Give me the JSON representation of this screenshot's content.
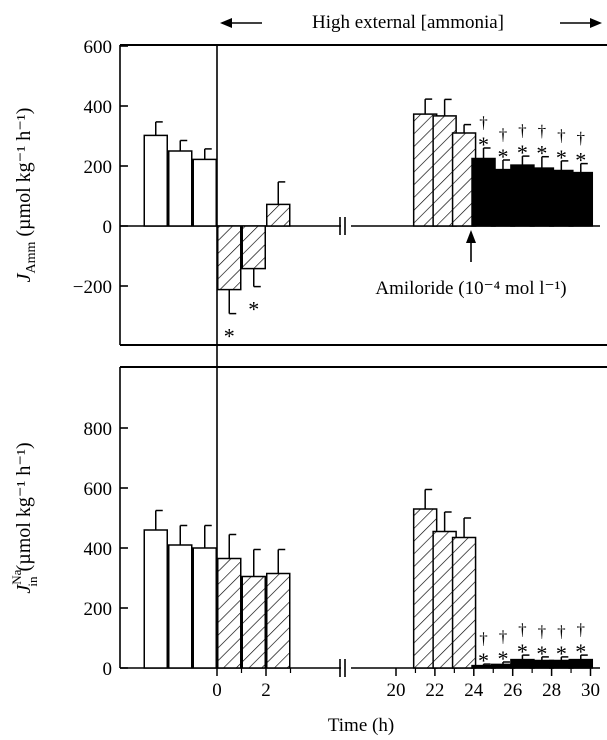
{
  "header": {
    "text": "High external [ammonia]"
  },
  "x_axis": {
    "label": "Time (h)",
    "tick_labels": [
      "0",
      "2",
      "20",
      "22",
      "24",
      "26",
      "28",
      "30"
    ]
  },
  "top_panel": {
    "ylabel_main": "J",
    "ylabel_sub": "Amm",
    "ylabel_unit": " (µmol kg⁻¹ h⁻¹)",
    "yticks": [
      "600",
      "400",
      "200",
      "0",
      "−200"
    ],
    "annotation": "Amiloride (10⁻⁴ mol l⁻¹)"
  },
  "bottom_panel": {
    "ylabel_main": "J",
    "ylabel_sup": "Na",
    "ylabel_sub": "in",
    "ylabel_unit": " (µmol kg⁻¹ h⁻¹)",
    "yticks": [
      "800",
      "600",
      "400",
      "200",
      "0"
    ]
  },
  "significance": {
    "star": "*",
    "dagger": "†"
  },
  "chart_data": [
    {
      "type": "bar",
      "panel": "top",
      "ylim": [
        -400,
        600
      ],
      "x_time_h": [
        -2.5,
        -1.5,
        -0.5,
        0.5,
        1.5,
        2.5,
        21.5,
        22.5,
        23.5,
        24.5,
        25.5,
        26.5,
        27.5,
        28.5,
        29.5
      ],
      "values": [
        302,
        250,
        222,
        -212,
        -142,
        72,
        373,
        367,
        310,
        225,
        188,
        203,
        193,
        185,
        178
      ],
      "errors": [
        45,
        35,
        35,
        80,
        60,
        75,
        50,
        55,
        28,
        35,
        32,
        30,
        38,
        32,
        30
      ],
      "fill": [
        "open",
        "open",
        "open",
        "hatched",
        "hatched",
        "hatched",
        "hatched",
        "hatched",
        "hatched",
        "solid",
        "solid",
        "solid",
        "solid",
        "solid",
        "solid"
      ],
      "star": [
        false,
        false,
        false,
        true,
        true,
        false,
        false,
        false,
        false,
        true,
        true,
        true,
        true,
        true,
        true
      ],
      "dagger": [
        false,
        false,
        false,
        false,
        false,
        false,
        false,
        false,
        false,
        true,
        true,
        true,
        true,
        true,
        true
      ]
    },
    {
      "type": "bar",
      "panel": "bottom",
      "ylim": [
        0,
        1000
      ],
      "x_time_h": [
        -2.5,
        -1.5,
        -0.5,
        0.5,
        1.5,
        2.5,
        21.5,
        22.5,
        23.5,
        24.5,
        25.5,
        26.5,
        27.5,
        28.5,
        29.5
      ],
      "values": [
        460,
        410,
        400,
        365,
        305,
        315,
        530,
        455,
        435,
        8,
        12,
        28,
        25,
        25,
        28
      ],
      "errors": [
        65,
        65,
        75,
        80,
        90,
        80,
        65,
        65,
        65,
        5,
        8,
        15,
        12,
        12,
        15
      ],
      "fill": [
        "open",
        "open",
        "open",
        "hatched",
        "hatched",
        "hatched",
        "hatched",
        "hatched",
        "hatched",
        "solid",
        "solid",
        "solid",
        "solid",
        "solid",
        "solid"
      ],
      "star": [
        false,
        false,
        false,
        false,
        false,
        false,
        false,
        false,
        false,
        true,
        true,
        true,
        true,
        true,
        true
      ],
      "dagger": [
        false,
        false,
        false,
        false,
        false,
        false,
        false,
        false,
        false,
        true,
        true,
        true,
        true,
        true,
        true
      ]
    }
  ]
}
